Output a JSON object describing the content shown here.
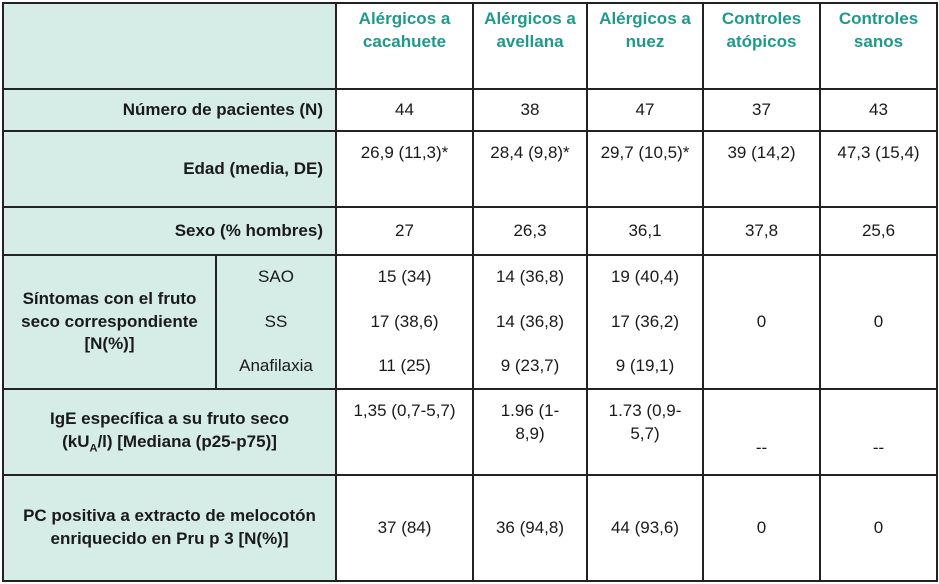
{
  "columns": [
    "Alérgicos a cacahuete",
    "Alérgicos a avellana",
    "Alérgicos a nuez",
    "Controles atópicos",
    "Controles sanos"
  ],
  "rows": {
    "n": {
      "label": "Número de pacientes (N)",
      "values": [
        "44",
        "38",
        "47",
        "37",
        "43"
      ]
    },
    "age": {
      "label": "Edad (media, DE)",
      "values": [
        "26,9 (11,3)*",
        "28,4 (9,8)*",
        "29,7 (10,5)*",
        "39 (14,2)",
        "47,3 (15,4)"
      ]
    },
    "sex": {
      "label": "Sexo (% hombres)",
      "values": [
        "27",
        "26,3",
        "36,1",
        "37,8",
        "25,6"
      ]
    },
    "symptoms": {
      "label": "Síntomas con el fruto seco correspondiente [N(%)]",
      "sublabels": [
        "SAO",
        "SS",
        "Anafilaxia"
      ],
      "peanut": [
        "15 (34)",
        "17 (38,6)",
        "11 (25)"
      ],
      "hazelnut": [
        "14 (36,8)",
        "14 (36,8)",
        "9 (23,7)"
      ],
      "walnut": [
        "19 (40,4)",
        "17 (36,2)",
        "9 (19,1)"
      ],
      "atopic": "0",
      "healthy": "0"
    },
    "ige": {
      "label_a": "IgE específica a su fruto seco",
      "label_b_pre": "(kU",
      "label_b_sub": "A",
      "label_b_post": "/l) [Mediana (p25-p75)]",
      "values": [
        "1,35 (0,7-5,7)",
        "1.96 (1-8,9)",
        "1.73 (0,9-5,7)",
        "--",
        "--"
      ]
    },
    "pc": {
      "label": "PC positiva a extracto de melocotón enriquecido en Pru p 3 [N(%)]",
      "values": [
        "37 (84)",
        "36 (94,8)",
        "44 (93,6)",
        "0",
        "0"
      ]
    }
  }
}
